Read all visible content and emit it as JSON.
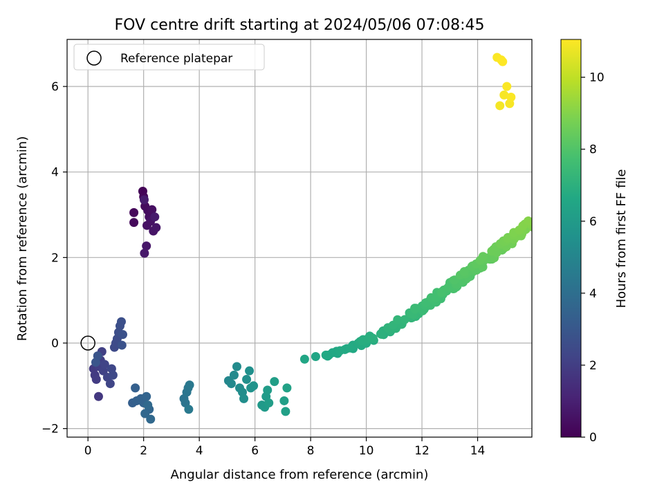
{
  "chart_data": {
    "type": "scatter",
    "title": "FOV centre drift starting at 2024/05/06 07:08:45",
    "xlabel": "Angular distance from reference (arcmin)",
    "ylabel": "Rotation from reference (arcmin)",
    "xlim": [
      -0.75,
      15.95
    ],
    "ylim": [
      -2.2,
      7.1
    ],
    "xticks": [
      0,
      2,
      4,
      6,
      8,
      10,
      12,
      14
    ],
    "yticks": [
      -2,
      0,
      2,
      4,
      6
    ],
    "grid": true,
    "legend": {
      "placement": "top-left",
      "entries": [
        "Reference platepar"
      ]
    },
    "reference_point": {
      "x": 0,
      "y": 0,
      "label": "Reference platepar"
    },
    "colorbar": {
      "label": "Hours from first FF file",
      "colormap": "viridis",
      "range": [
        0,
        11.05
      ],
      "ticks": [
        0,
        2,
        4,
        6,
        8,
        10
      ]
    },
    "points": [
      {
        "x": 1.97,
        "y": 3.55,
        "c": 0.1
      },
      {
        "x": 2.0,
        "y": 3.42,
        "c": 0.15
      },
      {
        "x": 1.65,
        "y": 3.05,
        "c": 0.2
      },
      {
        "x": 1.65,
        "y": 2.82,
        "c": 0.25
      },
      {
        "x": 2.05,
        "y": 3.2,
        "c": 0.3
      },
      {
        "x": 2.15,
        "y": 3.1,
        "c": 0.35
      },
      {
        "x": 2.2,
        "y": 2.95,
        "c": 0.4
      },
      {
        "x": 2.3,
        "y": 3.12,
        "c": 0.45
      },
      {
        "x": 2.12,
        "y": 2.75,
        "c": 0.5
      },
      {
        "x": 2.25,
        "y": 2.85,
        "c": 0.55
      },
      {
        "x": 2.35,
        "y": 2.62,
        "c": 0.6
      },
      {
        "x": 2.45,
        "y": 2.7,
        "c": 0.65
      },
      {
        "x": 2.1,
        "y": 2.27,
        "c": 0.7
      },
      {
        "x": 2.03,
        "y": 2.1,
        "c": 0.75
      },
      {
        "x": 2.4,
        "y": 2.95,
        "c": 0.8
      },
      {
        "x": 2.02,
        "y": 3.35,
        "c": 0.85
      },
      {
        "x": 0.38,
        "y": -1.25,
        "c": 1.8
      },
      {
        "x": 0.2,
        "y": -0.6,
        "c": 1.85
      },
      {
        "x": 0.25,
        "y": -0.75,
        "c": 1.9
      },
      {
        "x": 0.3,
        "y": -0.85,
        "c": 1.95
      },
      {
        "x": 0.4,
        "y": -0.55,
        "c": 2.0
      },
      {
        "x": 0.45,
        "y": -0.4,
        "c": 2.05
      },
      {
        "x": 0.5,
        "y": -0.2,
        "c": 2.1
      },
      {
        "x": 0.55,
        "y": -0.65,
        "c": 2.15
      },
      {
        "x": 0.6,
        "y": -0.5,
        "c": 2.2
      },
      {
        "x": 0.7,
        "y": -0.8,
        "c": 2.25
      },
      {
        "x": 0.8,
        "y": -0.95,
        "c": 2.3
      },
      {
        "x": 0.85,
        "y": -0.6,
        "c": 2.35
      },
      {
        "x": 0.9,
        "y": -0.75,
        "c": 2.4
      },
      {
        "x": 0.95,
        "y": -0.1,
        "c": 2.45
      },
      {
        "x": 1.0,
        "y": 0.0,
        "c": 2.5
      },
      {
        "x": 1.05,
        "y": 0.1,
        "c": 2.55
      },
      {
        "x": 1.1,
        "y": 0.25,
        "c": 2.6
      },
      {
        "x": 1.15,
        "y": 0.4,
        "c": 2.65
      },
      {
        "x": 1.2,
        "y": 0.5,
        "c": 2.7
      },
      {
        "x": 1.25,
        "y": 0.2,
        "c": 2.75
      },
      {
        "x": 1.22,
        "y": -0.05,
        "c": 2.8
      },
      {
        "x": 0.35,
        "y": -0.3,
        "c": 2.85
      },
      {
        "x": 0.28,
        "y": -0.45,
        "c": 2.9
      },
      {
        "x": 1.6,
        "y": -1.4,
        "c": 3.3
      },
      {
        "x": 1.7,
        "y": -1.05,
        "c": 3.35
      },
      {
        "x": 1.75,
        "y": -1.35,
        "c": 3.4
      },
      {
        "x": 1.9,
        "y": -1.3,
        "c": 3.45
      },
      {
        "x": 2.0,
        "y": -1.4,
        "c": 3.5
      },
      {
        "x": 2.1,
        "y": -1.25,
        "c": 3.55
      },
      {
        "x": 2.2,
        "y": -1.55,
        "c": 3.6
      },
      {
        "x": 2.05,
        "y": -1.65,
        "c": 3.65
      },
      {
        "x": 2.25,
        "y": -1.78,
        "c": 3.7
      },
      {
        "x": 2.15,
        "y": -1.45,
        "c": 3.75
      },
      {
        "x": 3.45,
        "y": -1.3,
        "c": 4.2
      },
      {
        "x": 3.5,
        "y": -1.4,
        "c": 4.25
      },
      {
        "x": 3.55,
        "y": -1.15,
        "c": 4.3
      },
      {
        "x": 3.6,
        "y": -1.05,
        "c": 4.35
      },
      {
        "x": 3.65,
        "y": -0.98,
        "c": 4.4
      },
      {
        "x": 3.62,
        "y": -1.55,
        "c": 4.45
      },
      {
        "x": 5.05,
        "y": -0.88,
        "c": 5.1
      },
      {
        "x": 5.15,
        "y": -0.95,
        "c": 5.15
      },
      {
        "x": 5.25,
        "y": -0.75,
        "c": 5.2
      },
      {
        "x": 5.35,
        "y": -0.55,
        "c": 5.25
      },
      {
        "x": 5.45,
        "y": -1.05,
        "c": 5.3
      },
      {
        "x": 5.55,
        "y": -1.15,
        "c": 5.35
      },
      {
        "x": 5.6,
        "y": -1.3,
        "c": 5.4
      },
      {
        "x": 5.7,
        "y": -0.85,
        "c": 5.45
      },
      {
        "x": 5.8,
        "y": -0.65,
        "c": 5.5
      },
      {
        "x": 5.85,
        "y": -1.05,
        "c": 5.55
      },
      {
        "x": 5.95,
        "y": -1.0,
        "c": 5.6
      },
      {
        "x": 6.25,
        "y": -1.45,
        "c": 5.9
      },
      {
        "x": 6.35,
        "y": -1.5,
        "c": 5.95
      },
      {
        "x": 6.4,
        "y": -1.25,
        "c": 6.0
      },
      {
        "x": 6.45,
        "y": -1.1,
        "c": 6.05
      },
      {
        "x": 6.5,
        "y": -1.4,
        "c": 6.1
      },
      {
        "x": 6.7,
        "y": -0.9,
        "c": 6.15
      },
      {
        "x": 7.05,
        "y": -1.35,
        "c": 6.2
      },
      {
        "x": 7.1,
        "y": -1.6,
        "c": 6.25
      },
      {
        "x": 7.15,
        "y": -1.05,
        "c": 6.3
      }
    ],
    "trend": {
      "ystart": -0.35,
      "yend": 5.4,
      "points_per_unit": 6.5,
      "y_cubic_coeffs": [
        0.2,
        0.55,
        3.6,
        1.05
      ],
      "scatter": {
        "x": 0.08,
        "y": 0.11
      },
      "color_from": 6.5,
      "color_to": 11.05,
      "tail": [
        {
          "x": 14.7,
          "y": 6.68,
          "c": 11.0
        },
        {
          "x": 14.85,
          "y": 6.62,
          "c": 11.05
        },
        {
          "x": 14.9,
          "y": 6.58,
          "c": 11.05
        },
        {
          "x": 14.95,
          "y": 5.8,
          "c": 10.95
        },
        {
          "x": 15.05,
          "y": 6.0,
          "c": 11.0
        },
        {
          "x": 15.2,
          "y": 5.75,
          "c": 11.0
        },
        {
          "x": 15.15,
          "y": 5.6,
          "c": 10.95
        },
        {
          "x": 14.8,
          "y": 5.55,
          "c": 10.9
        }
      ]
    }
  }
}
